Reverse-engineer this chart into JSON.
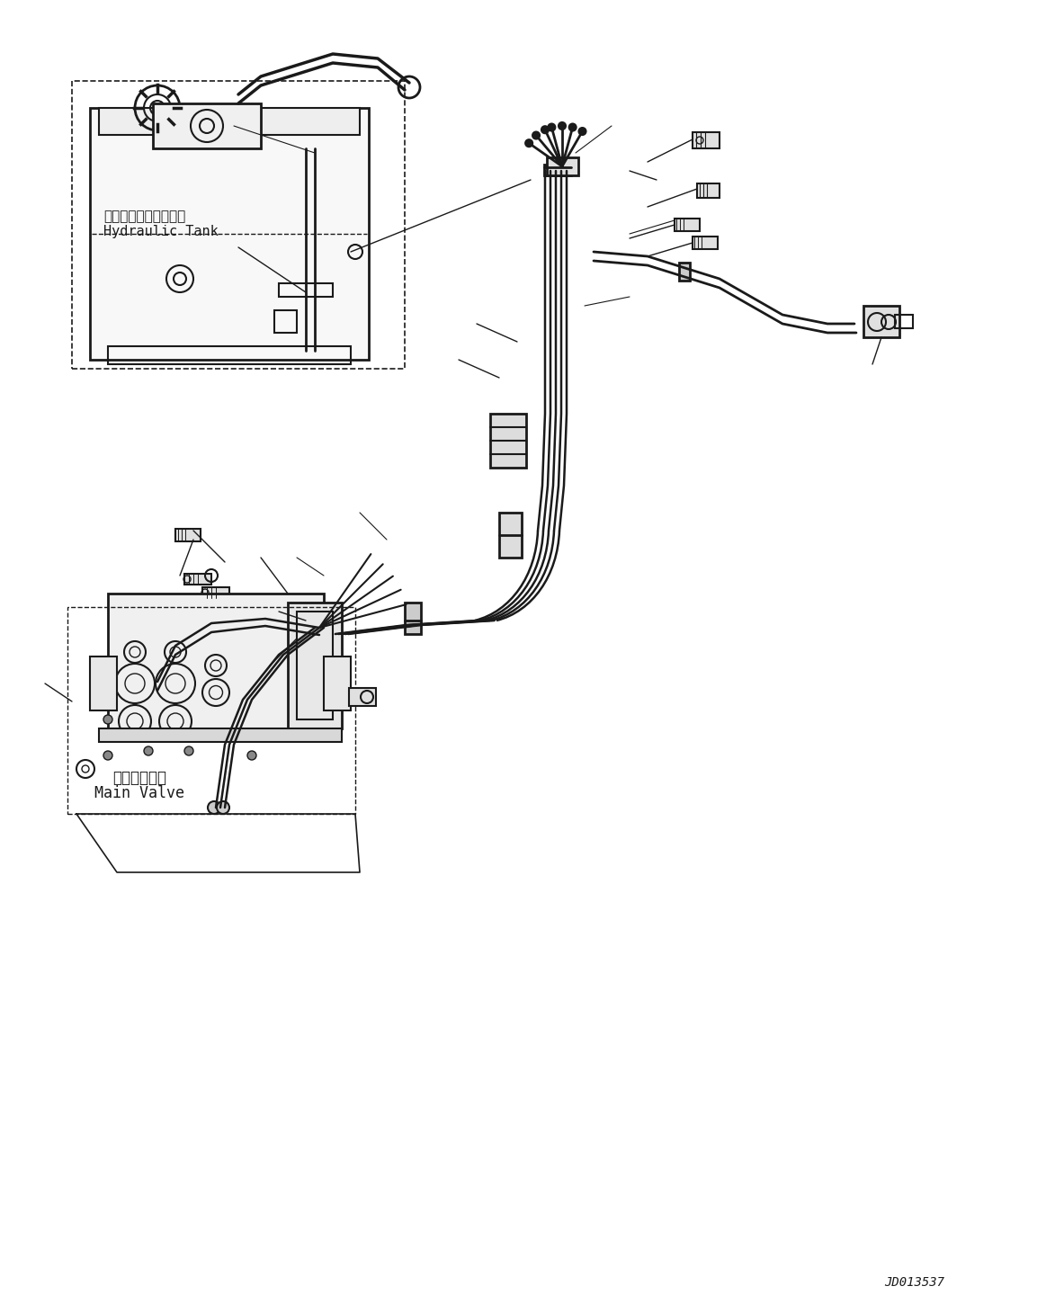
{
  "bg_color": "#ffffff",
  "line_color": "#1a1a1a",
  "label_hydraulic_tank_jp": "ハイドロリックタンク",
  "label_hydraulic_tank_en": "Hydraulic Tank",
  "label_main_valve_jp": "メインバルブ",
  "label_main_valve_en": "Main Valve",
  "watermark": "JD013537",
  "fig_width": 11.63,
  "fig_height": 14.6
}
